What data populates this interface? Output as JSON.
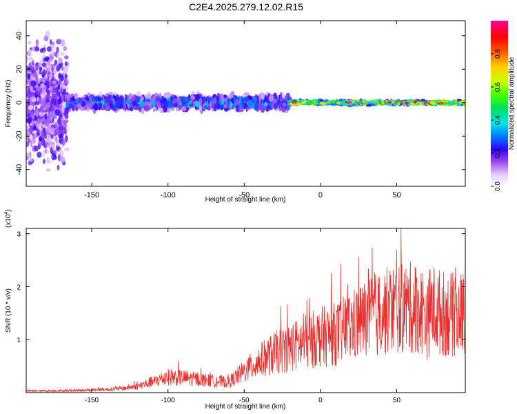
{
  "title": "C2E4.2025.279.12.02.R15",
  "colors": {
    "snr_line": "#e8302c",
    "frame": "#000000"
  },
  "chart_data": [
    {
      "type": "heatmap",
      "xlabel": "Height of straight line (km)",
      "ylabel": "Frequency (Hz)",
      "xlim": [
        -193,
        95
      ],
      "ylim": [
        -50,
        49
      ],
      "xticks": [
        -150,
        -100,
        -50,
        0,
        50
      ],
      "yticks": [
        -40,
        -20,
        0,
        20,
        40
      ],
      "colorbar": {
        "label": "Normalized spectral amplitude",
        "range": [
          0,
          1
        ],
        "ticks": [
          0.0,
          0.2,
          0.4,
          0.6,
          0.8
        ],
        "colormap": "rainbow"
      },
      "bands": [
        {
          "x0": -193,
          "x1": -166,
          "freq_spread": 48,
          "mean_amp": 0.15
        },
        {
          "x0": -166,
          "x1": -20,
          "freq_spread": 6,
          "mean_amp": 0.35
        },
        {
          "x0": -20,
          "x1": 95,
          "freq_spread": 2,
          "mean_amp": 0.85
        }
      ]
    },
    {
      "type": "line",
      "xlabel": "Height of straight line (km)",
      "ylabel": "SNR (10 * v/v)",
      "yscale_label": "(x10",
      "yscale_exp": "4",
      "yscale_close": ")",
      "xlim": [
        -193,
        95
      ],
      "ylim": [
        0,
        3.1
      ],
      "xticks": [
        -150,
        -100,
        -50,
        0,
        50
      ],
      "yticks": [
        1,
        2,
        3
      ],
      "series": [
        {
          "x": [
            -193,
            -160,
            -140,
            -130,
            -120,
            -110,
            -100,
            -90,
            -80,
            -70,
            -60,
            -50,
            -40,
            -30,
            -20,
            -10,
            0,
            10,
            20,
            30,
            40,
            50,
            60,
            68,
            70,
            72,
            80,
            90,
            95
          ],
          "y": [
            0.03,
            0.04,
            0.06,
            0.08,
            0.12,
            0.2,
            0.3,
            0.28,
            0.25,
            0.22,
            0.2,
            0.4,
            0.6,
            0.75,
            0.85,
            0.95,
            1.05,
            1.1,
            1.25,
            1.4,
            1.5,
            1.6,
            1.6,
            1.55,
            1.3,
            1.6,
            1.5,
            1.45,
            1.55
          ]
        }
      ]
    }
  ]
}
